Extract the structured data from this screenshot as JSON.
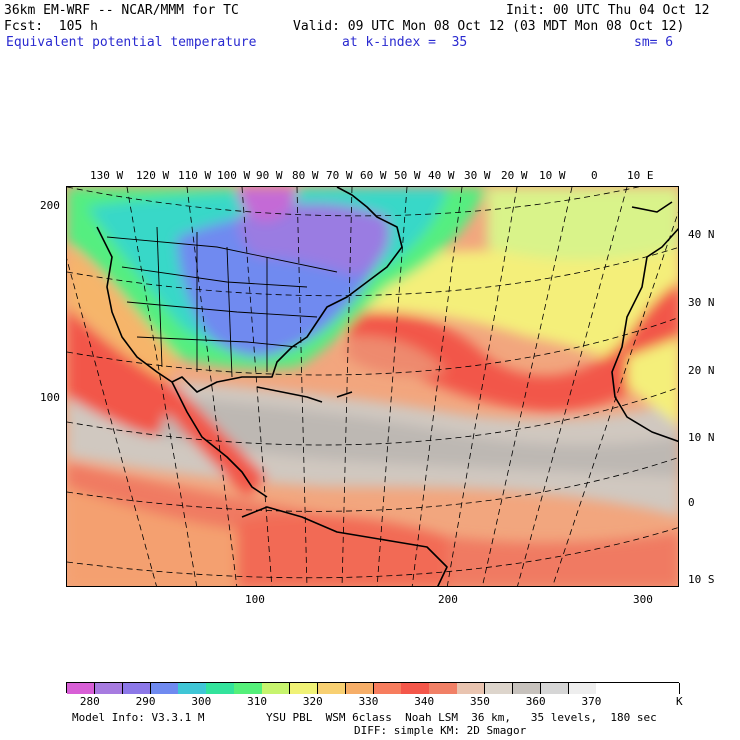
{
  "header": {
    "model_title": "36km EM-WRF -- NCAR/MMM for TC",
    "init_time": "Init: 00 UTC Thu 04 Oct 12",
    "forecast_hour": "Fcst:  105 h",
    "valid_time": "Valid: 09 UTC Mon 08 Oct 12 (03 MDT Mon 08 Oct 12)",
    "field_name": "Equivalent potential temperature",
    "level": "at k-index =  35",
    "smoothing": "sm= 6"
  },
  "map": {
    "longitude_labels": [
      "130 W",
      "120 W",
      "110 W",
      "100 W",
      "90 W",
      "80 W",
      "70 W",
      "60 W",
      "50 W",
      "40 W",
      "30 W",
      "20 W",
      "10 W",
      "0",
      "10 E"
    ],
    "latitude_labels": [
      "40 N",
      "30 N",
      "20 N",
      "10 N",
      "0",
      "10 S"
    ],
    "grid_y_labels": [
      "200",
      "100"
    ],
    "grid_x_labels": [
      "100",
      "200",
      "300"
    ]
  },
  "colorbar": {
    "colors": [
      "#d85fd6",
      "#a77be0",
      "#8c78e8",
      "#6f8af0",
      "#3fc6d6",
      "#33e39c",
      "#55f07a",
      "#c7f46e",
      "#f0f276",
      "#f8d072",
      "#f6ae68",
      "#f77d5e",
      "#f4574a",
      "#f18066",
      "#e9c4b0",
      "#ddd5cc",
      "#c7c2bd",
      "#d6d6d6",
      "#eeeeee",
      "#ffffff",
      "#ffffff",
      "#ffffff"
    ],
    "labels": [
      "280",
      "290",
      "300",
      "310",
      "320",
      "330",
      "340",
      "350",
      "360",
      "370"
    ],
    "unit": "K"
  },
  "footer": {
    "model_info": "Model Info: V3.3.1 M",
    "physics_line1": "YSU PBL  WSM 6class  Noah LSM  36 km,   35 levels,  180 sec",
    "physics_line2": "DIFF: simple KM: 2D Smagor"
  }
}
